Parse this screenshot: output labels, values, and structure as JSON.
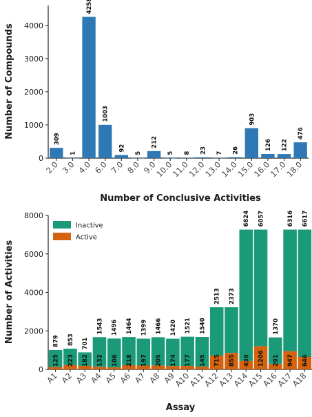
{
  "chart_data": [
    {
      "type": "bar",
      "categories": [
        "2.0",
        "3.0",
        "4.0",
        "6.0",
        "7.0",
        "8.0",
        "9.0",
        "10.0",
        "11.0",
        "12.0",
        "13.0",
        "14.0",
        "15.0",
        "16.0",
        "17.0",
        "18.0"
      ],
      "values": [
        309,
        1,
        4258,
        1003,
        92,
        5,
        212,
        5,
        8,
        23,
        7,
        26,
        903,
        126,
        122,
        476
      ],
      "xlabel": "Number of Conclusive Activities",
      "ylabel": "Number of Compounds",
      "ylim": [
        0,
        4600
      ],
      "yticks": [
        0,
        1000,
        2000,
        3000,
        4000
      ],
      "colors": {
        "bar": "#2e78b5"
      },
      "grid": false
    },
    {
      "type": "bar",
      "stacked": true,
      "categories": [
        "A1",
        "A2",
        "A3",
        "A4",
        "A5",
        "A6",
        "A7",
        "A8",
        "A9",
        "A10",
        "A11",
        "A12",
        "A13",
        "A14",
        "A15",
        "A16",
        "A17",
        "A18"
      ],
      "series": [
        {
          "name": "Active",
          "values": [
            125,
            223,
            182,
            132,
            106,
            218,
            197,
            205,
            174,
            177,
            145,
            715,
            855,
            439,
            1206,
            291,
            947,
            646
          ]
        },
        {
          "name": "Inactive",
          "values": [
            879,
            853,
            701,
            1543,
            1496,
            1464,
            1399,
            1466,
            1420,
            1521,
            1540,
            2513,
            2373,
            6824,
            6057,
            1370,
            6316,
            6617
          ]
        }
      ],
      "xlabel": "Assay",
      "ylabel": "Number of Activities",
      "ylim": [
        0,
        8000
      ],
      "yticks": [
        0,
        2000,
        4000,
        6000,
        8000
      ],
      "legend": {
        "placement": "top-left",
        "entries": [
          "Inactive",
          "Active"
        ]
      },
      "colors": {
        "Inactive": "#1a9a78",
        "Active": "#d5620f"
      },
      "grid": false
    }
  ]
}
